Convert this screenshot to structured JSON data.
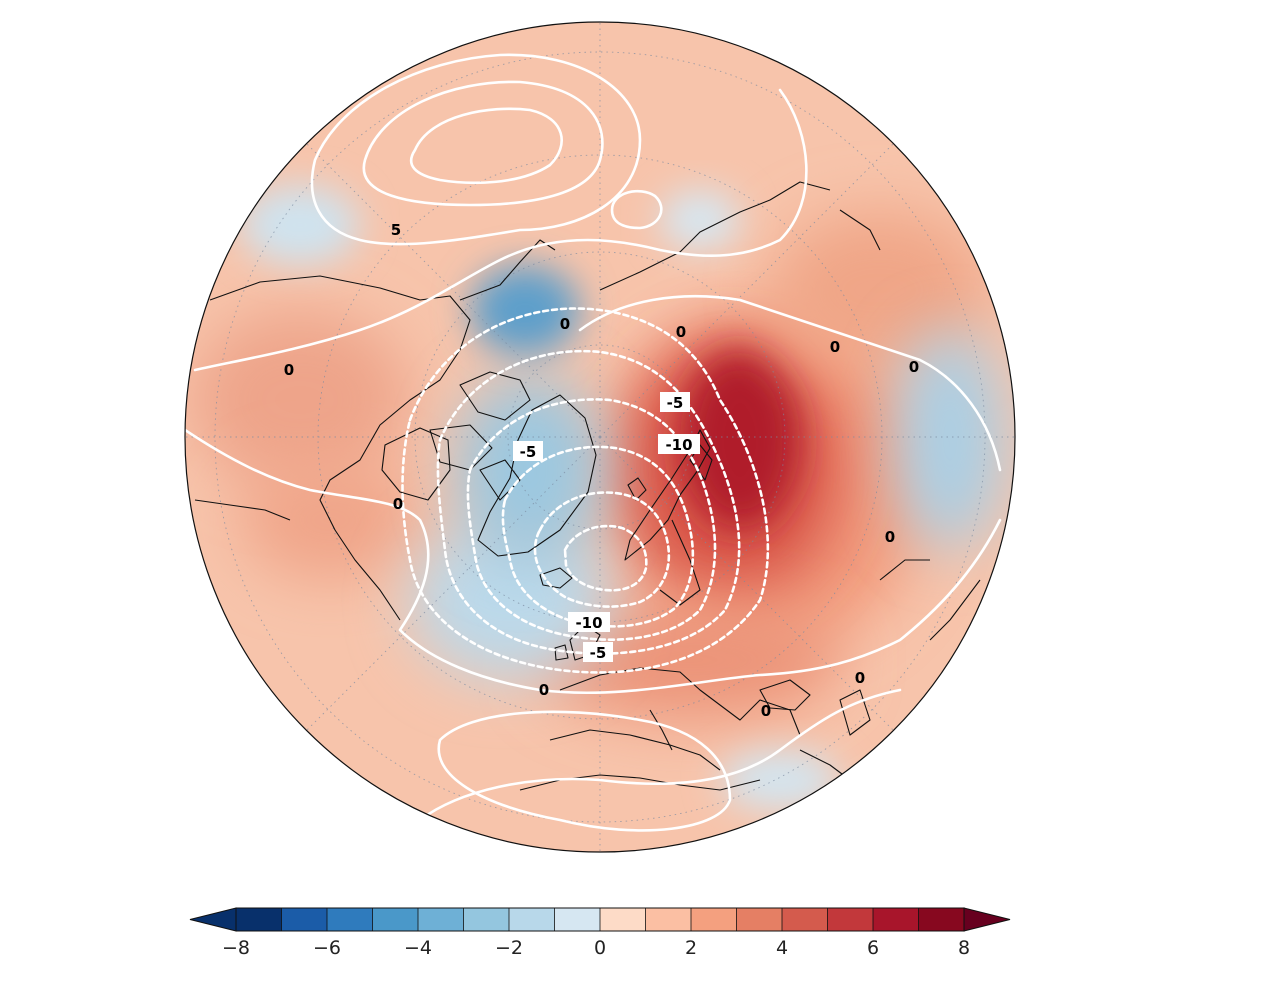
{
  "map": {
    "projection": "north-polar-stereographic",
    "fill_field": "anomaly (shaded)",
    "contour_labels": [
      "5",
      "0",
      "0",
      "0",
      "0",
      "0",
      "0",
      "-5",
      "-10",
      "-5",
      "-10",
      "-5",
      "0",
      "0",
      "0",
      "0"
    ]
  },
  "colorbar": {
    "ticks": [
      "−8",
      "−6",
      "−4",
      "−2",
      "0",
      "2",
      "4",
      "6",
      "8"
    ],
    "min": -8,
    "max": 8,
    "step": 1,
    "extend": "both",
    "colors": [
      "#08306b",
      "#1b5ca8",
      "#2f7bbd",
      "#4a98c9",
      "#6eb0d6",
      "#94c6df",
      "#b8d8ea",
      "#d6e7f2",
      "#fddbc7",
      "#fbbfa3",
      "#f4a07f",
      "#e57f64",
      "#d45b4d",
      "#c2383b",
      "#a8152b",
      "#87081f"
    ],
    "arrow_low_color": "#08306b",
    "arrow_high_color": "#67001f"
  }
}
